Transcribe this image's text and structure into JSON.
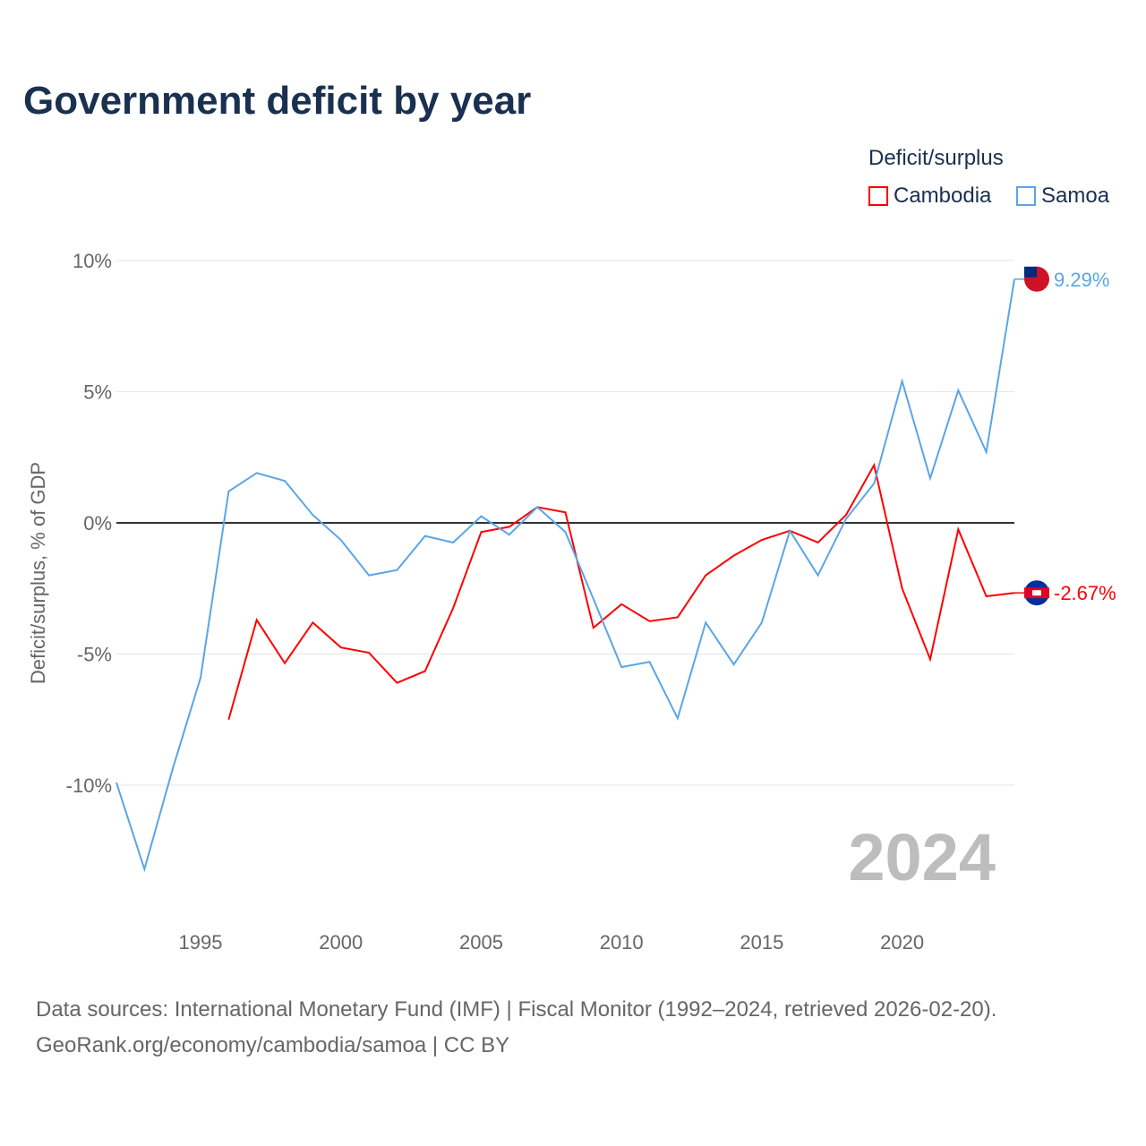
{
  "title": "Government deficit by year",
  "legend": {
    "title": "Deficit/surplus",
    "items": [
      {
        "label": "Cambodia",
        "color": "#ff0000"
      },
      {
        "label": "Samoa",
        "color": "#5aa5e8"
      }
    ]
  },
  "source": {
    "line1": "Data sources: International Monetary Fund (IMF) | Fiscal Monitor (1992–2024, retrieved 2026-02-20).",
    "line2": "GeoRank.org/economy/cambodia/samoa | CC BY"
  },
  "chart_data": {
    "type": "line",
    "title": "Government deficit by year",
    "ylabel": "Deficit/surplus, % of GDP",
    "xlim": [
      1992,
      2024
    ],
    "ylim": [
      -10,
      10
    ],
    "yticks": [
      {
        "v": 10,
        "label": "10%"
      },
      {
        "v": 5,
        "label": "5%"
      },
      {
        "v": 0,
        "label": "0%"
      },
      {
        "v": -5,
        "label": "-5%"
      },
      {
        "v": -10,
        "label": "-10%"
      }
    ],
    "xticks": [
      1995,
      2000,
      2005,
      2010,
      2015,
      2020
    ],
    "watermark": "2024",
    "series": [
      {
        "name": "Cambodia",
        "color": "#ff0000",
        "end_label": "-2.67%",
        "x": [
          1996,
          1997,
          1998,
          1999,
          2000,
          2001,
          2002,
          2003,
          2004,
          2005,
          2006,
          2007,
          2008,
          2009,
          2010,
          2011,
          2012,
          2013,
          2014,
          2015,
          2016,
          2017,
          2018,
          2019,
          2020,
          2021,
          2022,
          2023,
          2024
        ],
        "values": [
          -7.5,
          -3.7,
          -5.35,
          -3.8,
          -4.75,
          -4.95,
          -6.1,
          -5.65,
          -3.25,
          -0.35,
          -0.15,
          0.6,
          0.4,
          -4.0,
          -3.1,
          -3.75,
          -3.6,
          -2.0,
          -1.25,
          -0.65,
          -0.3,
          -0.75,
          0.3,
          2.2,
          -2.5,
          -5.2,
          -0.25,
          -2.8,
          -2.67
        ]
      },
      {
        "name": "Samoa",
        "color": "#5aa5e8",
        "end_label": "9.29%",
        "x": [
          1992,
          1993,
          1994,
          1995,
          1996,
          1997,
          1998,
          1999,
          2000,
          2001,
          2002,
          2003,
          2004,
          2005,
          2006,
          2007,
          2008,
          2009,
          2010,
          2011,
          2012,
          2013,
          2014,
          2015,
          2016,
          2017,
          2018,
          2019,
          2020,
          2021,
          2022,
          2023,
          2024
        ],
        "values": [
          -9.9,
          -13.2,
          -9.4,
          -5.9,
          1.2,
          1.9,
          1.6,
          0.3,
          -0.65,
          -2.0,
          -1.8,
          -0.5,
          -0.75,
          0.25,
          -0.45,
          0.6,
          -0.35,
          -2.9,
          -5.5,
          -5.3,
          -7.45,
          -3.8,
          -5.4,
          -3.8,
          -0.3,
          -2.0,
          0.15,
          1.5,
          5.4,
          1.7,
          5.05,
          2.7,
          9.29
        ]
      }
    ]
  }
}
